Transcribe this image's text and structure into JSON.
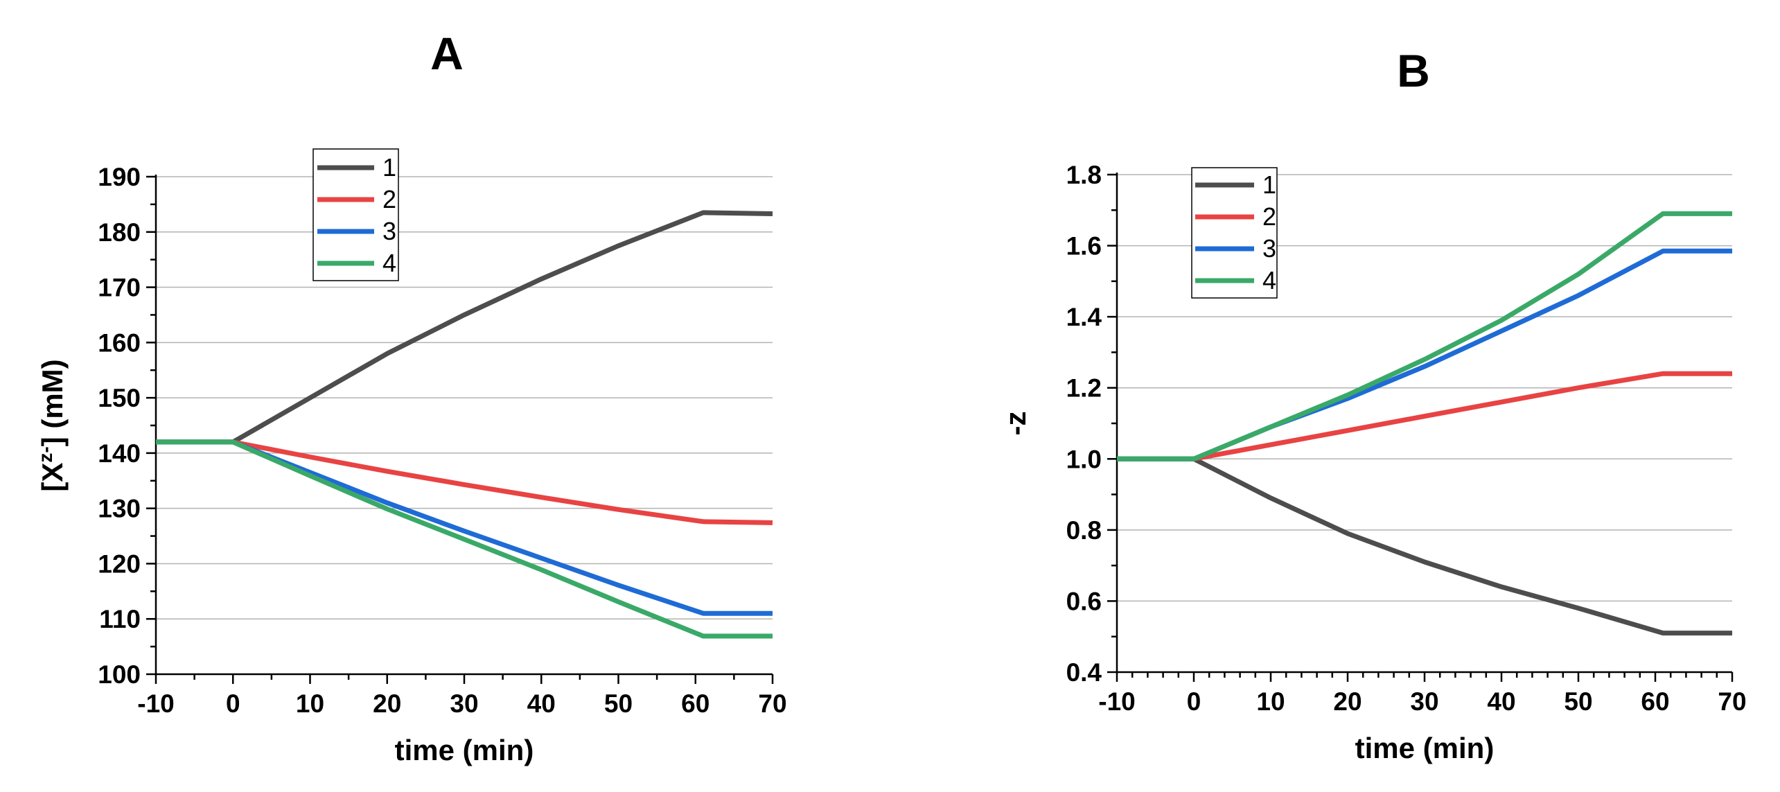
{
  "chart_data": [
    {
      "type": "line",
      "title": "A",
      "xlabel": "time (min)",
      "ylabel_main": "[X",
      "ylabel_sup": "z-",
      "ylabel_tail": "] (mM)",
      "xlim": [
        -10,
        70
      ],
      "ylim": [
        100,
        190
      ],
      "xticks": [
        -10,
        0,
        10,
        20,
        30,
        40,
        50,
        60,
        70
      ],
      "yticks": [
        100,
        110,
        120,
        130,
        140,
        150,
        160,
        170,
        180,
        190
      ],
      "grid": "horizontal",
      "legend_position": "top-left",
      "series": [
        {
          "name": "1",
          "color": "#4d4d4d",
          "x": [
            -10,
            0,
            10,
            20,
            30,
            40,
            50,
            61,
            70
          ],
          "y": [
            142,
            142,
            150,
            158,
            165,
            171.5,
            177.5,
            183.5,
            183.3
          ]
        },
        {
          "name": "2",
          "color": "#e84343",
          "x": [
            -10,
            0,
            10,
            20,
            30,
            40,
            50,
            61,
            70
          ],
          "y": [
            142,
            142,
            139.3,
            136.7,
            134.3,
            132,
            129.8,
            127.6,
            127.4
          ]
        },
        {
          "name": "3",
          "color": "#1f6bd6",
          "x": [
            -10,
            0,
            10,
            20,
            30,
            40,
            50,
            61,
            70
          ],
          "y": [
            142,
            142,
            136.5,
            131,
            125.9,
            121,
            116.1,
            111,
            111
          ]
        },
        {
          "name": "4",
          "color": "#3aa968",
          "x": [
            -10,
            0,
            10,
            20,
            30,
            40,
            50,
            61,
            70
          ],
          "y": [
            142,
            142,
            135.9,
            129.9,
            124.4,
            118.9,
            113.1,
            106.9,
            106.9
          ]
        }
      ]
    },
    {
      "type": "line",
      "title": "B",
      "xlabel": "time (min)",
      "ylabel": "-z",
      "xlim": [
        -10,
        70
      ],
      "ylim": [
        0.4,
        1.8
      ],
      "xticks": [
        -10,
        0,
        10,
        20,
        30,
        40,
        50,
        60,
        70
      ],
      "yticks": [
        0.4,
        0.6,
        0.8,
        1.0,
        1.2,
        1.4,
        1.6,
        1.8
      ],
      "grid": "horizontal",
      "legend_position": "top-left",
      "series": [
        {
          "name": "1",
          "color": "#4d4d4d",
          "x": [
            -10,
            0,
            10,
            20,
            30,
            40,
            50,
            61,
            70
          ],
          "y": [
            1.0,
            1.0,
            0.89,
            0.79,
            0.71,
            0.64,
            0.58,
            0.51,
            0.51
          ]
        },
        {
          "name": "2",
          "color": "#e84343",
          "x": [
            -10,
            0,
            10,
            20,
            30,
            40,
            50,
            61,
            70
          ],
          "y": [
            1.0,
            1.0,
            1.04,
            1.08,
            1.12,
            1.16,
            1.2,
            1.24,
            1.24
          ]
        },
        {
          "name": "3",
          "color": "#1f6bd6",
          "x": [
            -10,
            0,
            10,
            20,
            30,
            40,
            50,
            61,
            70
          ],
          "y": [
            1.0,
            1.0,
            1.09,
            1.17,
            1.26,
            1.36,
            1.46,
            1.585,
            1.585
          ]
        },
        {
          "name": "4",
          "color": "#3aa968",
          "x": [
            -10,
            0,
            10,
            20,
            30,
            40,
            50,
            61,
            70
          ],
          "y": [
            1.0,
            1.0,
            1.09,
            1.18,
            1.28,
            1.39,
            1.52,
            1.69,
            1.69
          ]
        }
      ]
    }
  ]
}
